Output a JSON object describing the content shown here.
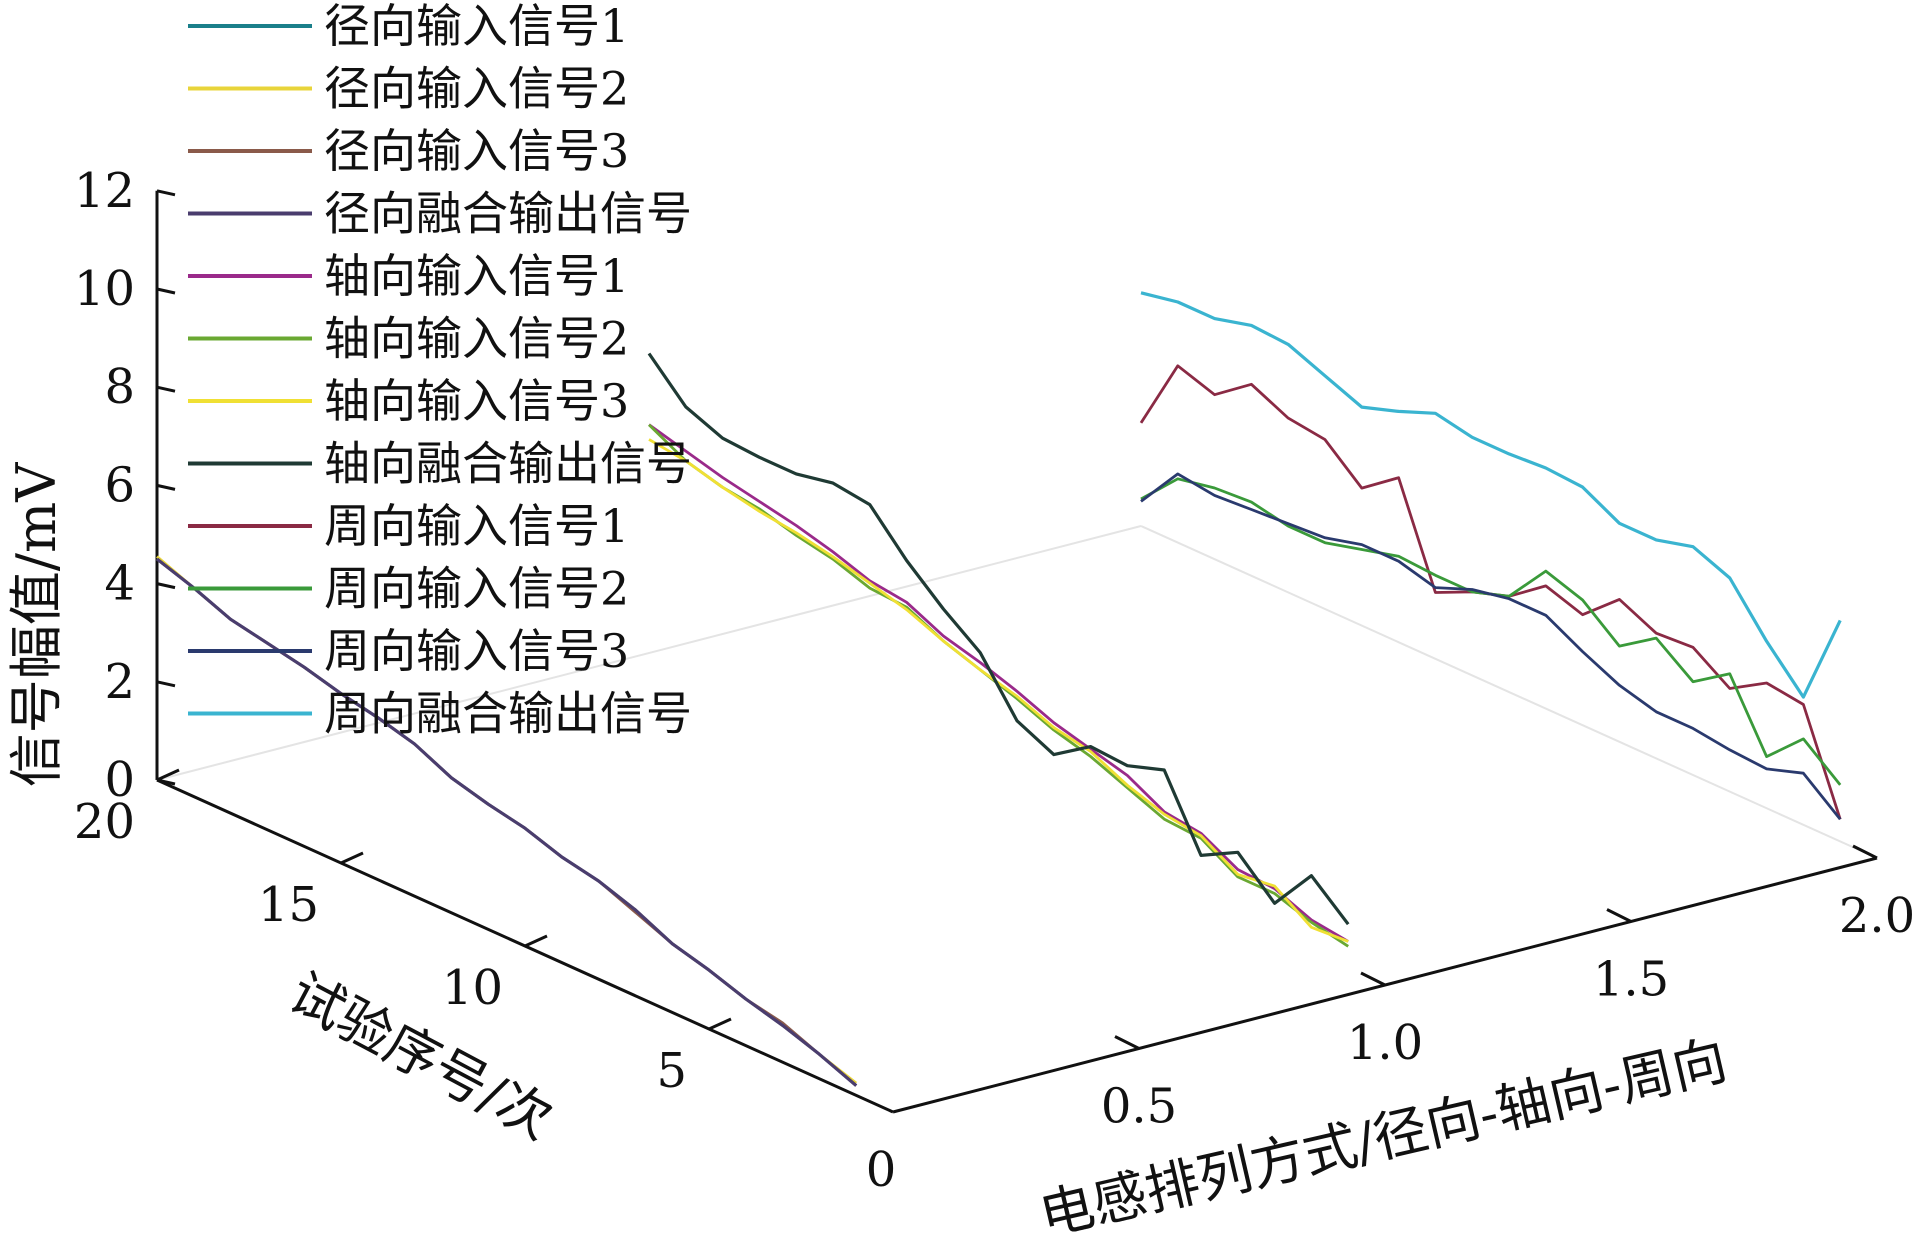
{
  "chart_data": {
    "type": "line",
    "projection": "3d",
    "title": "",
    "xlabel": "电感排列方式/径向-轴向-周向",
    "ylabel": "试验序号/次",
    "zlabel": "信号幅值/mV",
    "xlim": [
      0,
      2.0
    ],
    "ylim": [
      0,
      20
    ],
    "zlim": [
      0,
      12
    ],
    "x_ticks": [
      "0",
      "0.5",
      "1.0",
      "1.5",
      "2.0"
    ],
    "y_ticks": [
      "5",
      "10",
      "15",
      "20"
    ],
    "z_ticks": [
      "0",
      "2",
      "4",
      "6",
      "8",
      "10",
      "12"
    ],
    "grid": false,
    "legend_position": "top-left",
    "trial_index": [
      1,
      2,
      3,
      4,
      5,
      6,
      7,
      8,
      9,
      10,
      11,
      12,
      13,
      14,
      15,
      16,
      17,
      18,
      19,
      20
    ],
    "series": [
      {
        "name": "径向输入信号1",
        "color": "#1a7f8a",
        "x": 0.0,
        "values": [
          0.2,
          0.5,
          0.75,
          0.95,
          1.2,
          1.4,
          1.75,
          2.0,
          2.15,
          2.4,
          2.55,
          2.75,
          3.1,
          3.3,
          3.45,
          3.65,
          3.8,
          3.95,
          4.25,
          4.5
        ]
      },
      {
        "name": "径向输入信号2",
        "color": "#e8d43a",
        "x": 0.0,
        "values": [
          0.25,
          0.5,
          0.75,
          0.95,
          1.2,
          1.4,
          1.75,
          2.0,
          2.15,
          2.4,
          2.55,
          2.75,
          3.1,
          3.3,
          3.45,
          3.65,
          3.8,
          3.95,
          4.25,
          4.55
        ]
      },
      {
        "name": "径向输入信号3",
        "color": "#8a5a4a",
        "x": 0.0,
        "values": [
          0.2,
          0.5,
          0.8,
          0.95,
          1.2,
          1.4,
          1.7,
          2.0,
          2.15,
          2.4,
          2.55,
          2.75,
          3.1,
          3.3,
          3.45,
          3.65,
          3.8,
          3.95,
          4.25,
          4.5
        ]
      },
      {
        "name": "径向融合输出信号",
        "color": "#4a3d6e",
        "x": 0.0,
        "values": [
          0.2,
          0.5,
          0.75,
          0.95,
          1.2,
          1.4,
          1.75,
          2.0,
          2.15,
          2.4,
          2.55,
          2.75,
          3.1,
          3.3,
          3.45,
          3.65,
          3.8,
          3.95,
          4.25,
          4.5
        ]
      },
      {
        "name": "轴向输入信号1",
        "color": "#9a2a8a",
        "x": 1.0,
        "values": [
          0.55,
          0.65,
          0.95,
          1.0,
          1.4,
          1.5,
          1.9,
          2.1,
          2.3,
          2.6,
          2.85,
          3.05,
          3.4,
          3.5,
          3.75,
          3.95,
          4.1,
          4.25,
          4.45,
          4.65
        ]
      },
      {
        "name": "轴向输入信号2",
        "color": "#6aa832",
        "x": 1.0,
        "values": [
          0.45,
          0.6,
          0.85,
          0.85,
          1.3,
          1.35,
          1.65,
          1.95,
          2.15,
          2.45,
          2.7,
          2.95,
          3.3,
          3.35,
          3.6,
          3.75,
          3.95,
          4.05,
          4.25,
          4.65
        ]
      },
      {
        "name": "轴向输入信号3",
        "color": "#f0e034",
        "x": 1.0,
        "values": [
          0.55,
          0.5,
          1.0,
          0.9,
          1.35,
          1.45,
          1.7,
          2.05,
          2.2,
          2.5,
          2.7,
          2.95,
          3.25,
          3.45,
          3.65,
          3.8,
          3.9,
          4.05,
          4.25,
          4.35
        ]
      },
      {
        "name": "轴向融合输出信号",
        "color": "#1f3a34",
        "x": 1.0,
        "values": [
          0.9,
          1.55,
          0.65,
          1.35,
          0.95,
          2.35,
          2.1,
          2.15,
          1.65,
          2.0,
          3.05,
          3.6,
          4.25,
          5.05,
          5.15,
          5.0,
          5.0,
          5.05,
          5.35,
          6.1
        ]
      },
      {
        "name": "周向输入信号1",
        "color": "#8a2a44",
        "x": 2.0,
        "values": [
          0.45,
          2.45,
          2.55,
          2.1,
          2.6,
          2.55,
          2.9,
          2.25,
          2.5,
          1.95,
          1.7,
          1.35,
          3.35,
          2.8,
          3.45,
          3.55,
          3.9,
          3.35,
          3.6,
          2.1
        ]
      },
      {
        "name": "周向输入信号2",
        "color": "#3a9a3a",
        "x": 2.0,
        "values": [
          1.15,
          1.75,
          1.05,
          2.4,
          1.9,
          2.45,
          1.95,
          2.55,
          2.8,
          1.95,
          1.7,
          1.7,
          1.75,
          1.55,
          1.35,
          1.35,
          1.5,
          1.45,
          1.3,
          0.55
        ]
      },
      {
        "name": "周向输入信号3",
        "color": "#2a3a6e",
        "x": 2.0,
        "values": [
          0.45,
          1.05,
          0.8,
          0.85,
          0.95,
          0.95,
          1.15,
          1.5,
          1.9,
          1.9,
          1.75,
          1.45,
          1.65,
          1.65,
          1.45,
          1.4,
          1.35,
          1.3,
          1.4,
          0.5
        ]
      },
      {
        "name": "周向融合输出信号",
        "color": "#3ab4d0",
        "x": 2.0,
        "values": [
          4.5,
          2.6,
          3.4,
          4.35,
          4.65,
          4.45,
          4.45,
          4.85,
          4.9,
          4.85,
          4.85,
          5.0,
          4.7,
          4.45,
          4.75,
          5.05,
          5.1,
          4.9,
          4.9,
          4.75
        ]
      }
    ]
  }
}
